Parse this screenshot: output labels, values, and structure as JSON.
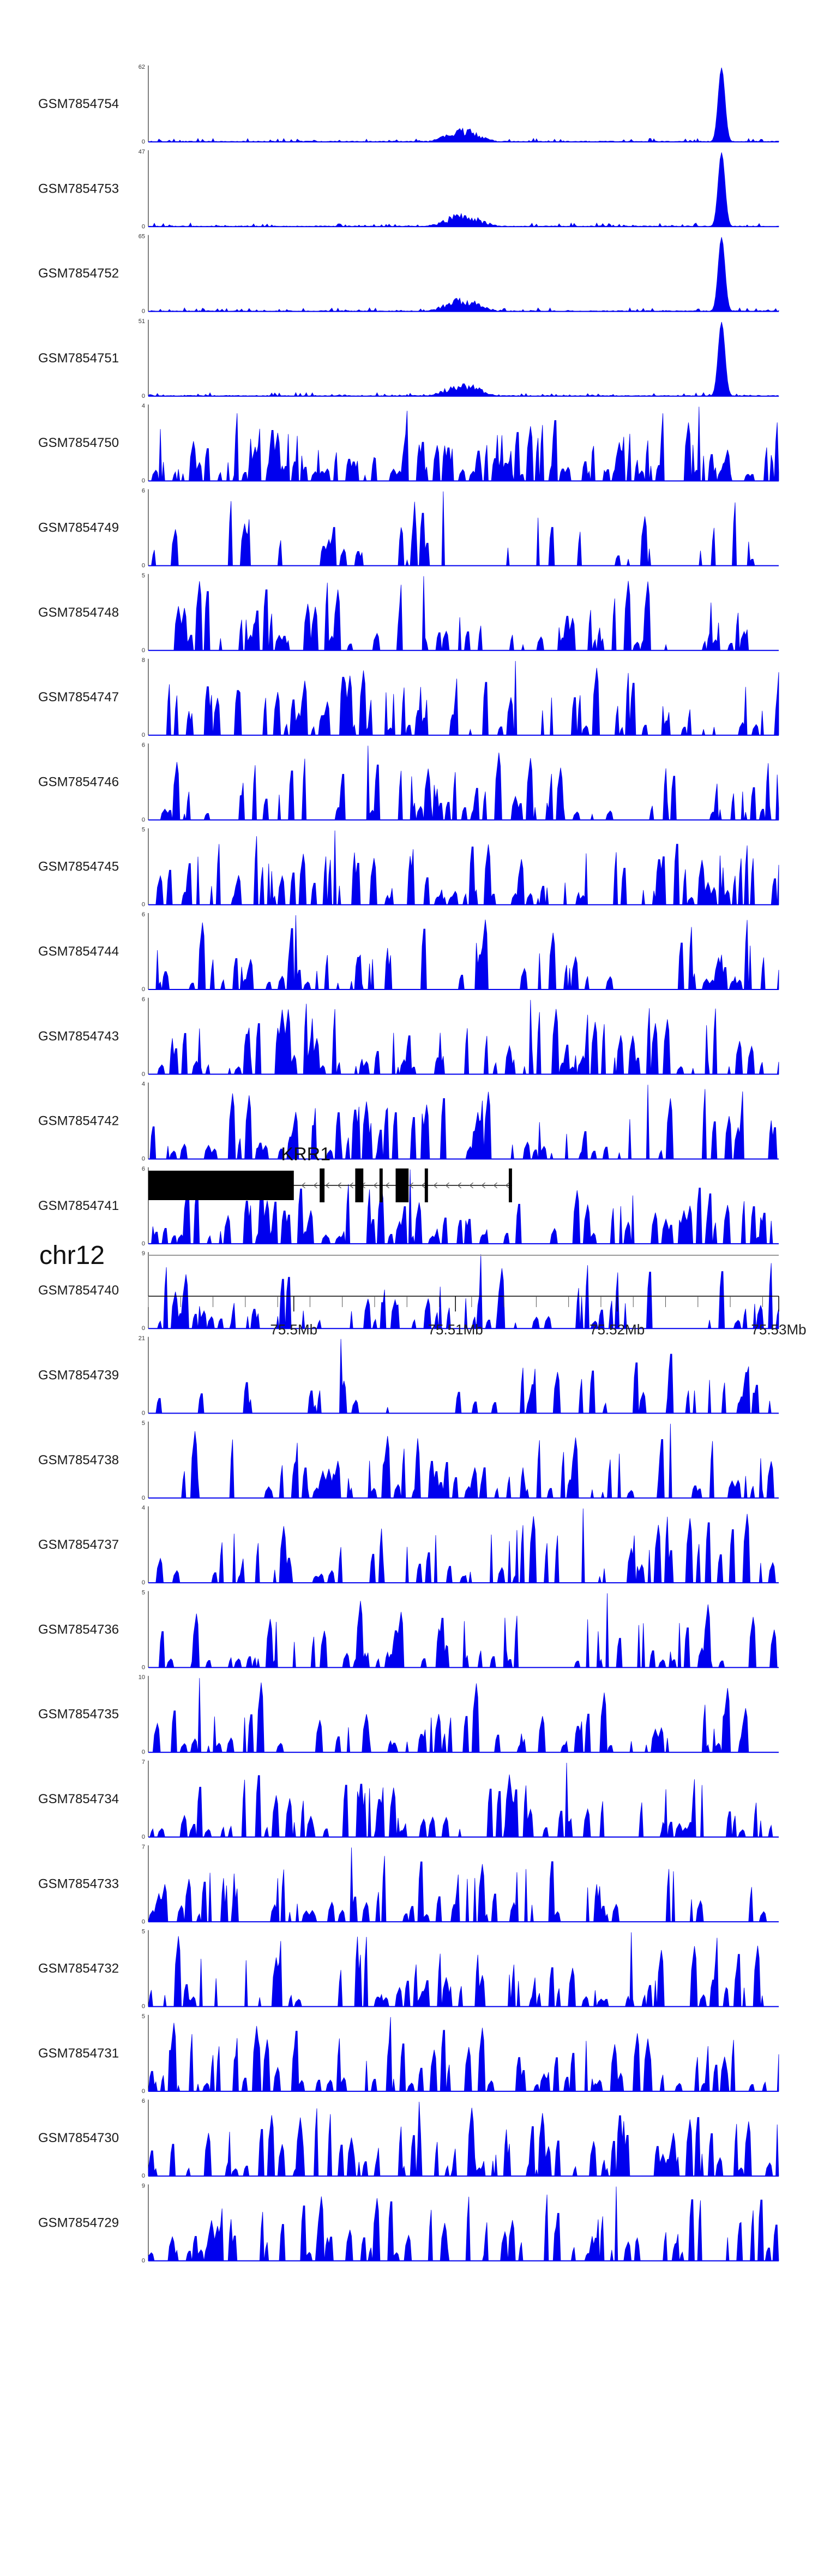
{
  "chart_data": {
    "type": "area",
    "title": "",
    "chromosome": "chr12",
    "x_range_mb": [
      75.491,
      75.53
    ],
    "x_tick_labels": [
      {
        "value": 75.5,
        "label": "75.5Mb"
      },
      {
        "value": 75.51,
        "label": "75.51Mb"
      },
      {
        "value": 75.52,
        "label": "75.52Mb"
      },
      {
        "value": 75.53,
        "label": "75.53Mb"
      }
    ],
    "minor_tick_step_mb": 0.002,
    "series_color": "#0000ee",
    "tracks": [
      {
        "name": "GSM7854754",
        "ymax": 62,
        "profile": "chip",
        "seed": 11
      },
      {
        "name": "GSM7854753",
        "ymax": 47,
        "profile": "chip",
        "seed": 12
      },
      {
        "name": "GSM7854752",
        "ymax": 65,
        "profile": "chip",
        "seed": 13
      },
      {
        "name": "GSM7854751",
        "ymax": 51,
        "profile": "chip",
        "seed": 14
      },
      {
        "name": "GSM7854750",
        "ymax": 4,
        "profile": "dense",
        "seed": 15
      },
      {
        "name": "GSM7854749",
        "ymax": 6,
        "profile": "sparse",
        "seed": 16
      },
      {
        "name": "GSM7854748",
        "ymax": 5,
        "profile": "noise",
        "seed": 17
      },
      {
        "name": "GSM7854747",
        "ymax": 8,
        "profile": "noise",
        "seed": 18
      },
      {
        "name": "GSM7854746",
        "ymax": 6,
        "profile": "noise",
        "seed": 19
      },
      {
        "name": "GSM7854745",
        "ymax": 5,
        "profile": "noise",
        "seed": 20
      },
      {
        "name": "GSM7854744",
        "ymax": 6,
        "profile": "noise",
        "seed": 21
      },
      {
        "name": "GSM7854743",
        "ymax": 6,
        "profile": "noise",
        "seed": 22
      },
      {
        "name": "GSM7854742",
        "ymax": 4,
        "profile": "noise",
        "seed": 23
      },
      {
        "name": "GSM7854741",
        "ymax": 6,
        "profile": "noise",
        "seed": 24
      },
      {
        "name": "GSM7854740",
        "ymax": 9,
        "profile": "noise",
        "seed": 25
      },
      {
        "name": "GSM7854739",
        "ymax": 21,
        "profile": "sparse",
        "seed": 26
      },
      {
        "name": "GSM7854738",
        "ymax": 5,
        "profile": "noise",
        "seed": 27
      },
      {
        "name": "GSM7854737",
        "ymax": 4,
        "profile": "noise",
        "seed": 28
      },
      {
        "name": "GSM7854736",
        "ymax": 5,
        "profile": "noise",
        "seed": 29
      },
      {
        "name": "GSM7854735",
        "ymax": 10,
        "profile": "noise",
        "seed": 30
      },
      {
        "name": "GSM7854734",
        "ymax": 7,
        "profile": "noise",
        "seed": 31
      },
      {
        "name": "GSM7854733",
        "ymax": 7,
        "profile": "noise",
        "seed": 32
      },
      {
        "name": "GSM7854732",
        "ymax": 5,
        "profile": "noise",
        "seed": 33
      },
      {
        "name": "GSM7854731",
        "ymax": 5,
        "profile": "noise",
        "seed": 34
      },
      {
        "name": "GSM7854730",
        "ymax": 6,
        "profile": "noise",
        "seed": 35
      },
      {
        "name": "GSM7854729",
        "ymax": 9,
        "profile": "noise",
        "seed": 36
      }
    ],
    "y_min_label": "0",
    "gene": {
      "name": "KRR1",
      "start_mb": 75.491,
      "end_mb": 75.5135,
      "strand": "-",
      "exons_mb": [
        [
          75.491,
          75.5
        ],
        [
          75.5016,
          75.5019
        ],
        [
          75.5038,
          75.5043
        ],
        [
          75.5053,
          75.5055
        ],
        [
          75.5063,
          75.5071
        ],
        [
          75.5081,
          75.5083
        ],
        [
          75.5133,
          75.5135
        ]
      ]
    }
  }
}
